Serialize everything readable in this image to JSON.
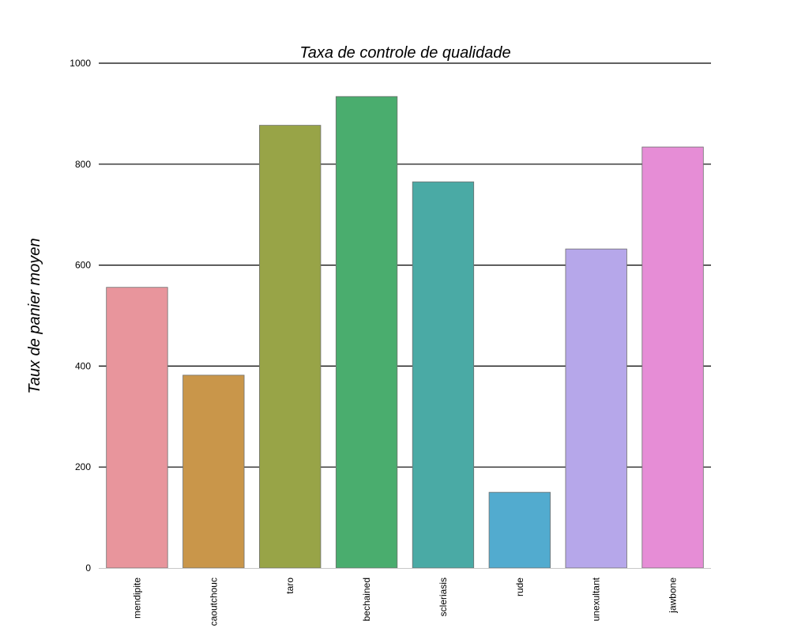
{
  "chart_data": {
    "type": "bar",
    "title": "Taxa de controle de qualidade",
    "xlabel": "",
    "ylabel": "Taux de panier moyen",
    "categories": [
      "mendipite",
      "caoutchouc",
      "taro",
      "bechained",
      "scleriasis",
      "rude",
      "unexultant",
      "jawbone"
    ],
    "values": [
      556,
      382,
      877,
      934,
      765,
      150,
      632,
      834
    ],
    "colors": [
      "#e8959c",
      "#c9964a",
      "#98a447",
      "#4aad6e",
      "#4aaaa5",
      "#52abcf",
      "#b6a7ea",
      "#e68dd6"
    ],
    "ylim": [
      0,
      1000
    ],
    "yticks": [
      0,
      200,
      400,
      600,
      800,
      1000
    ],
    "grid": "horizontal",
    "legend": "none"
  }
}
